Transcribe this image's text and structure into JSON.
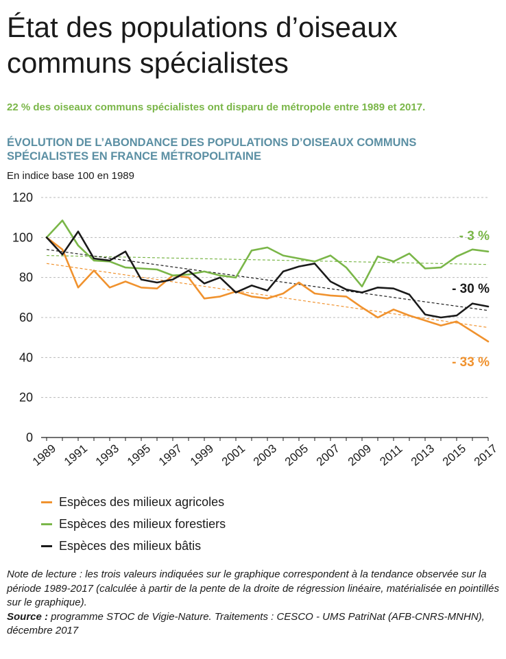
{
  "title": "État des populations d’oiseaux communs spécialistes",
  "subtitle": "22 % des oiseaux communs spécialistes ont disparu de métropole entre 1989 et 2017.",
  "chart_title": "ÉVOLUTION DE L’ABONDANCE DES POPULATIONS D’OISEAUX COMMUNS SPÉCIALISTES EN FRANCE MÉTROPOLITAINE",
  "unit_label": "En indice base 100 en 1989",
  "note": {
    "text": "Note de lecture : les trois valeurs indiquées sur le graphique correspondent à la tendance observée sur la période 1989-2017 (calculée à partir de la pente de la droite de régression linéaire, matérialisée en pointillés sur le graphique).",
    "source_label": "Source :",
    "source_text": " programme STOC de Vigie-Nature. Traitements : CESCO - UMS PatriNat (AFB-CNRS-MNHN), décembre 2017"
  },
  "chart_data": {
    "type": "line",
    "x": [
      1989,
      1990,
      1991,
      1992,
      1993,
      1994,
      1995,
      1996,
      1997,
      1998,
      1999,
      2000,
      2001,
      2002,
      2003,
      2004,
      2005,
      2006,
      2007,
      2008,
      2009,
      2010,
      2011,
      2012,
      2013,
      2014,
      2015,
      2016,
      2017
    ],
    "x_tick_labels": [
      "1989",
      "1991",
      "1993",
      "1995",
      "1997",
      "1999",
      "2001",
      "2003",
      "2005",
      "2007",
      "2009",
      "2011",
      "2013",
      "2015",
      "2017"
    ],
    "ylim": [
      0,
      120
    ],
    "y_ticks": [
      "0",
      "20",
      "40",
      "60",
      "80",
      "100",
      "120"
    ],
    "grid": "horizontal dashed",
    "legend_position": "bottom-left",
    "series": [
      {
        "name": "Espèces des milieux agricoles",
        "color": "#f0922e",
        "values": [
          100,
          94,
          75,
          83.5,
          75,
          78,
          75,
          74.5,
          81,
          80,
          69.5,
          70.5,
          73,
          70.5,
          69.5,
          72,
          77.5,
          72,
          71,
          70.5,
          65,
          60,
          64,
          61,
          58.5,
          56,
          58,
          53,
          48
        ],
        "trend": [
          87,
          55
        ],
        "trend_label": "- 33 %"
      },
      {
        "name": "Espèces des milieux forestiers",
        "color": "#7ab648",
        "values": [
          100,
          108.5,
          96,
          88.5,
          88,
          85,
          84.5,
          84,
          81,
          81.5,
          83,
          81,
          80,
          93.5,
          95,
          91,
          89.5,
          88,
          91,
          85,
          75.5,
          90.5,
          88,
          92,
          84.5,
          85,
          90.5,
          94,
          93
        ],
        "trend": [
          91,
          86.5
        ],
        "trend_label": "- 3 %"
      },
      {
        "name": "Espèces des milieux bâtis",
        "color": "#1a1a1a",
        "values": [
          100,
          91.5,
          103,
          89.5,
          88.5,
          93,
          79,
          77.5,
          79,
          83.5,
          77,
          80,
          72.5,
          76,
          73.5,
          83,
          85.5,
          87,
          78,
          74,
          72.5,
          75,
          74.5,
          71.5,
          61.5,
          60,
          61,
          67,
          65.5
        ],
        "trend": [
          94,
          63.5
        ],
        "trend_label": "- 30 %"
      }
    ]
  }
}
